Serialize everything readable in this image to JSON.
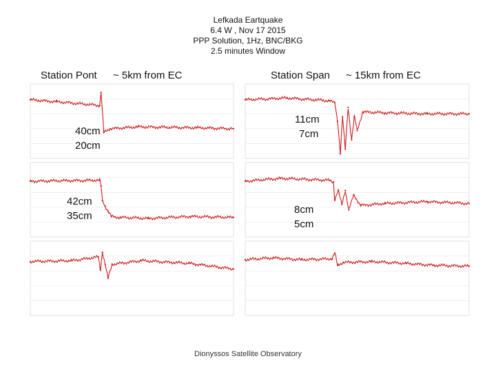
{
  "title_lines": [
    "Lefkada Eartquake",
    "6.4 W , Nov 17 2015",
    "PPP Solution, 1Hz, BNC/BKG",
    "2.5 minutes Window"
  ],
  "stations": {
    "left": {
      "label": "Station Pont",
      "distance": "~ 5km from EC"
    },
    "right": {
      "label": "Station Span",
      "distance": "~ 15km from EC"
    }
  },
  "annotations": {
    "pont_a": [
      "40cm",
      "20cm"
    ],
    "pont_b": [
      "42cm",
      "35cm"
    ],
    "span_a": [
      "11cm",
      "7cm"
    ],
    "span_b": [
      "8cm",
      "5cm"
    ]
  },
  "footer": "Dionyssos Satellite Observatory",
  "colors": {
    "series": "#d01818",
    "grid": "#e6e6e6",
    "frame": "#cfcfcf"
  },
  "chart_data": [
    {
      "type": "line",
      "station": "Pont",
      "component": "a",
      "series_points": [
        [
          0,
          0.6
        ],
        [
          38,
          0.2
        ],
        [
          100,
          -0.6
        ],
        [
          102,
          2.2
        ],
        [
          106,
          -6.4
        ],
        [
          115,
          -5.6
        ],
        [
          155,
          -5.2
        ],
        [
          240,
          -5.4
        ],
        [
          293,
          -5.6
        ]
      ]
    },
    {
      "type": "line",
      "station": "Pont",
      "component": "b",
      "series_points": [
        [
          0,
          0
        ],
        [
          100,
          0.2
        ],
        [
          102,
          -1
        ],
        [
          104,
          -4.2
        ],
        [
          108,
          -5.4
        ],
        [
          112,
          -6.4
        ],
        [
          117,
          -7.6
        ],
        [
          130,
          -7.8
        ],
        [
          170,
          -8
        ],
        [
          230,
          -7.6
        ],
        [
          293,
          -7.8
        ]
      ]
    },
    {
      "type": "line",
      "station": "Pont",
      "component": "c",
      "series_points": [
        [
          0,
          -0.4
        ],
        [
          60,
          -0.2
        ],
        [
          98,
          0.6
        ],
        [
          101,
          -2.2
        ],
        [
          104,
          1.6
        ],
        [
          108,
          -1
        ],
        [
          112,
          -4
        ],
        [
          118,
          -1
        ],
        [
          160,
          -0.2
        ],
        [
          230,
          -0.8
        ],
        [
          293,
          -2
        ]
      ]
    },
    {
      "type": "line",
      "station": "Span",
      "component": "a",
      "series_points": [
        [
          0,
          0.6
        ],
        [
          60,
          1.0
        ],
        [
          120,
          0.4
        ],
        [
          128,
          0
        ],
        [
          132,
          -4
        ],
        [
          136,
          -11
        ],
        [
          139,
          -3
        ],
        [
          143,
          -10
        ],
        [
          147,
          -1
        ],
        [
          152,
          -8
        ],
        [
          156,
          -3
        ],
        [
          160,
          -6
        ],
        [
          168,
          -2
        ],
        [
          200,
          -2.2
        ],
        [
          260,
          -2.4
        ],
        [
          320,
          -2.4
        ]
      ]
    },
    {
      "type": "line",
      "station": "Span",
      "component": "b",
      "series_points": [
        [
          0,
          0
        ],
        [
          50,
          0.6
        ],
        [
          120,
          0.2
        ],
        [
          126,
          -0.2
        ],
        [
          128,
          -4
        ],
        [
          133,
          -2
        ],
        [
          138,
          -5
        ],
        [
          143,
          -2
        ],
        [
          148,
          -6.2
        ],
        [
          155,
          -3
        ],
        [
          165,
          -5.2
        ],
        [
          200,
          -4.8
        ],
        [
          260,
          -4.4
        ],
        [
          320,
          -4.8
        ]
      ]
    },
    {
      "type": "line",
      "station": "Span",
      "component": "c",
      "series_points": [
        [
          0,
          0
        ],
        [
          40,
          0.4
        ],
        [
          80,
          0
        ],
        [
          124,
          0.2
        ],
        [
          128,
          1.4
        ],
        [
          132,
          -1.2
        ],
        [
          140,
          -0.6
        ],
        [
          180,
          -0.4
        ],
        [
          230,
          -0.8
        ],
        [
          270,
          -1.2
        ],
        [
          320,
          -1.4
        ]
      ]
    }
  ]
}
